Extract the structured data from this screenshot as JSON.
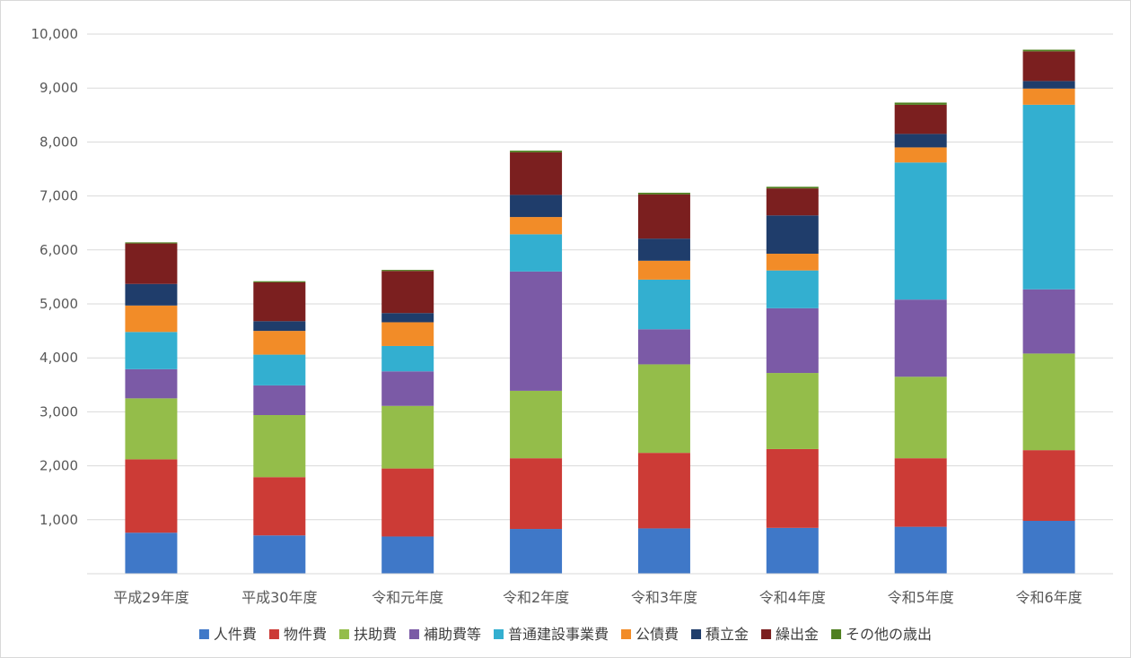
{
  "chart_data": {
    "type": "bar",
    "stacked": true,
    "title": "",
    "xlabel": "",
    "ylabel": "",
    "ylim": [
      0,
      10000
    ],
    "yticks": [
      "1,000",
      "2,000",
      "3,000",
      "4,000",
      "5,000",
      "6,000",
      "7,000",
      "8,000",
      "9,000",
      "10,000"
    ],
    "grid": true,
    "legend": "bottom",
    "categories": [
      "平成29年度",
      "平成30年度",
      "令和元年度",
      "令和2年度",
      "令和3年度",
      "令和4年度",
      "令和5年度",
      "令和6年度"
    ],
    "series": [
      {
        "name": "人件費",
        "color": "#3f78c8",
        "values": [
          760,
          710,
          690,
          830,
          840,
          850,
          870,
          980
        ]
      },
      {
        "name": "物件費",
        "color": "#cc3b36",
        "values": [
          1360,
          1080,
          1260,
          1310,
          1400,
          1460,
          1270,
          1310
        ]
      },
      {
        "name": "扶助費",
        "color": "#94bd4a",
        "values": [
          1130,
          1150,
          1160,
          1250,
          1640,
          1410,
          1510,
          1790
        ]
      },
      {
        "name": "補助費等",
        "color": "#7b5aa6",
        "values": [
          540,
          550,
          640,
          2210,
          650,
          1200,
          1430,
          1190
        ]
      },
      {
        "name": "普通建設事業費",
        "color": "#33afd0",
        "values": [
          690,
          570,
          470,
          690,
          920,
          700,
          2540,
          3420
        ]
      },
      {
        "name": "公債費",
        "color": "#f28c28",
        "values": [
          490,
          440,
          440,
          320,
          350,
          310,
          280,
          300
        ]
      },
      {
        "name": "積立金",
        "color": "#1f3d6b",
        "values": [
          400,
          180,
          170,
          410,
          410,
          710,
          250,
          140
        ]
      },
      {
        "name": "繰出金",
        "color": "#7b1f1f",
        "values": [
          750,
          720,
          780,
          790,
          820,
          500,
          540,
          550
        ]
      },
      {
        "name": "その他の歳出",
        "color": "#4f7f1f",
        "values": [
          20,
          20,
          20,
          30,
          30,
          30,
          40,
          30
        ]
      }
    ]
  }
}
